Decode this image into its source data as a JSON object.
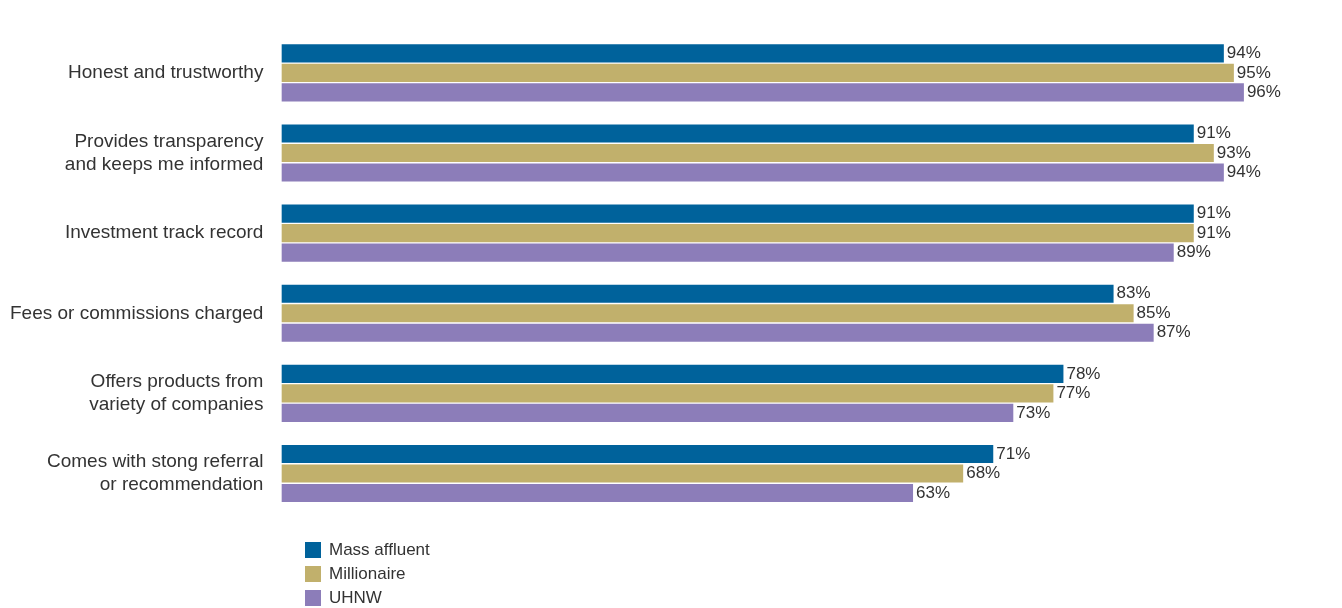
{
  "chart_data": {
    "type": "bar",
    "orientation": "horizontal",
    "categories": [
      "Honest and trustworthy",
      "Provides transparency and keeps me informed",
      "Investment track record",
      "Fees or commissions charged",
      "Offers products from variety of companies",
      "Comes with stong referral or recommendation"
    ],
    "series": [
      {
        "name": "Mass affluent",
        "color": "#00629b",
        "values": [
          94,
          91,
          91,
          83,
          78,
          71
        ],
        "value_labels": [
          "94%",
          "91%",
          "91%",
          "83%",
          "78%",
          "71%"
        ]
      },
      {
        "name": "Millionaire",
        "color": "#c1b06c",
        "values": [
          95,
          93,
          91,
          85,
          77,
          68
        ],
        "value_labels": [
          "95%",
          "93%",
          "91%",
          "85%",
          "77%",
          "68%"
        ]
      },
      {
        "name": "UHNW",
        "color": "#8c7db9",
        "values": [
          96,
          94,
          89,
          87,
          73,
          63
        ],
        "value_labels": [
          "96%",
          "94%",
          "89%",
          "87%",
          "73%",
          "63%"
        ]
      }
    ],
    "legend": "bottom left",
    "tick_labels": "y"
  }
}
